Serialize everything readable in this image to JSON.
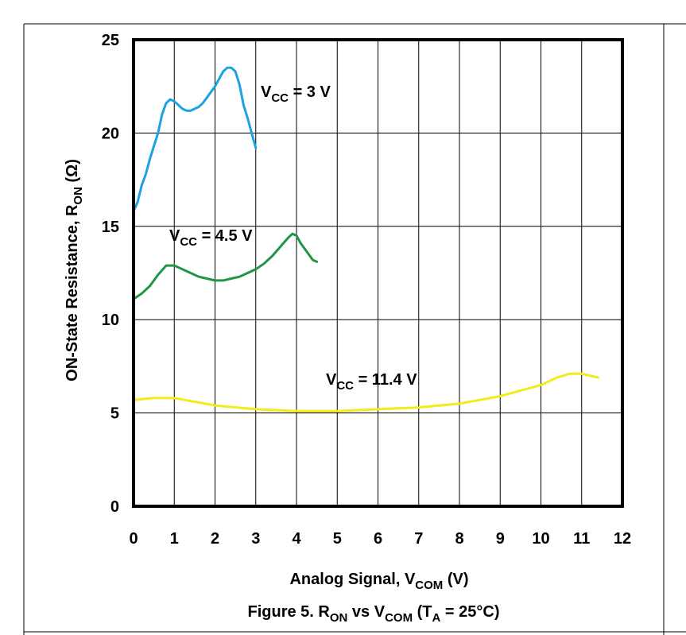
{
  "chart_data": {
    "type": "line",
    "caption": {
      "prefix": "Figure 5. R",
      "r_sub": "ON",
      "mid": " vs V",
      "v_sub": "COM",
      "open": " (T",
      "t_sub": "A",
      "suffix": " = 25°C)"
    },
    "xlabel": {
      "text": "Analog Signal, V",
      "sub": "COM",
      "unit": " (V)"
    },
    "ylabel": {
      "text": "ON-State Resistance,  R",
      "sub": "ON",
      "unit": " (Ω)"
    },
    "xlim": [
      0,
      12
    ],
    "ylim": [
      0,
      25
    ],
    "x_ticks": [
      "0",
      "1",
      "2",
      "3",
      "4",
      "5",
      "6",
      "7",
      "8",
      "9",
      "10",
      "11",
      "12"
    ],
    "y_ticks": [
      "0",
      "5",
      "10",
      "15",
      "20",
      "25"
    ],
    "grid": true,
    "series": [
      {
        "name": "VCC = 3 V",
        "label": {
          "main": "V",
          "sub": "CC",
          "rest": " = 3 V"
        },
        "color": "#1AA3E0",
        "x": [
          0,
          0.1,
          0.2,
          0.3,
          0.4,
          0.5,
          0.6,
          0.7,
          0.8,
          0.9,
          1.0,
          1.1,
          1.2,
          1.3,
          1.4,
          1.5,
          1.6,
          1.7,
          1.8,
          1.9,
          2.0,
          2.1,
          2.2,
          2.3,
          2.4,
          2.5,
          2.6,
          2.7,
          2.8,
          2.9,
          3.0
        ],
        "y": [
          15.8,
          16.3,
          17.2,
          17.8,
          18.6,
          19.3,
          20.0,
          21.0,
          21.6,
          21.8,
          21.7,
          21.5,
          21.3,
          21.2,
          21.2,
          21.3,
          21.4,
          21.6,
          21.9,
          22.2,
          22.5,
          22.9,
          23.3,
          23.5,
          23.5,
          23.3,
          22.6,
          21.5,
          20.8,
          20.0,
          19.2
        ]
      },
      {
        "name": "VCC = 4.5 V",
        "label": {
          "main": "V",
          "sub": "CC",
          "rest": " = 4.5 V"
        },
        "color": "#1E9645",
        "x": [
          0,
          0.2,
          0.4,
          0.6,
          0.8,
          1.0,
          1.2,
          1.4,
          1.6,
          1.8,
          2.0,
          2.2,
          2.4,
          2.6,
          2.8,
          3.0,
          3.2,
          3.4,
          3.6,
          3.8,
          3.9,
          4.0,
          4.1,
          4.2,
          4.3,
          4.4,
          4.5
        ],
        "y": [
          11.1,
          11.4,
          11.8,
          12.4,
          12.9,
          12.9,
          12.7,
          12.5,
          12.3,
          12.2,
          12.1,
          12.1,
          12.2,
          12.3,
          12.5,
          12.7,
          13.0,
          13.4,
          13.9,
          14.4,
          14.6,
          14.5,
          14.1,
          13.8,
          13.5,
          13.2,
          13.1
        ]
      },
      {
        "name": "VCC = 11.4 V",
        "label": {
          "main": "V",
          "sub": "CC",
          "rest": " = 11.4 V"
        },
        "color": "#F2EC1C",
        "x": [
          0,
          0.5,
          1.0,
          1.5,
          2.0,
          3.0,
          4.0,
          5.0,
          6.0,
          7.0,
          8.0,
          8.5,
          9.0,
          9.5,
          10.0,
          10.4,
          10.7,
          11.0,
          11.2,
          11.4
        ],
        "y": [
          5.7,
          5.8,
          5.8,
          5.6,
          5.4,
          5.2,
          5.1,
          5.1,
          5.2,
          5.3,
          5.5,
          5.7,
          5.9,
          6.2,
          6.5,
          6.9,
          7.1,
          7.1,
          7.0,
          6.9
        ]
      }
    ]
  }
}
